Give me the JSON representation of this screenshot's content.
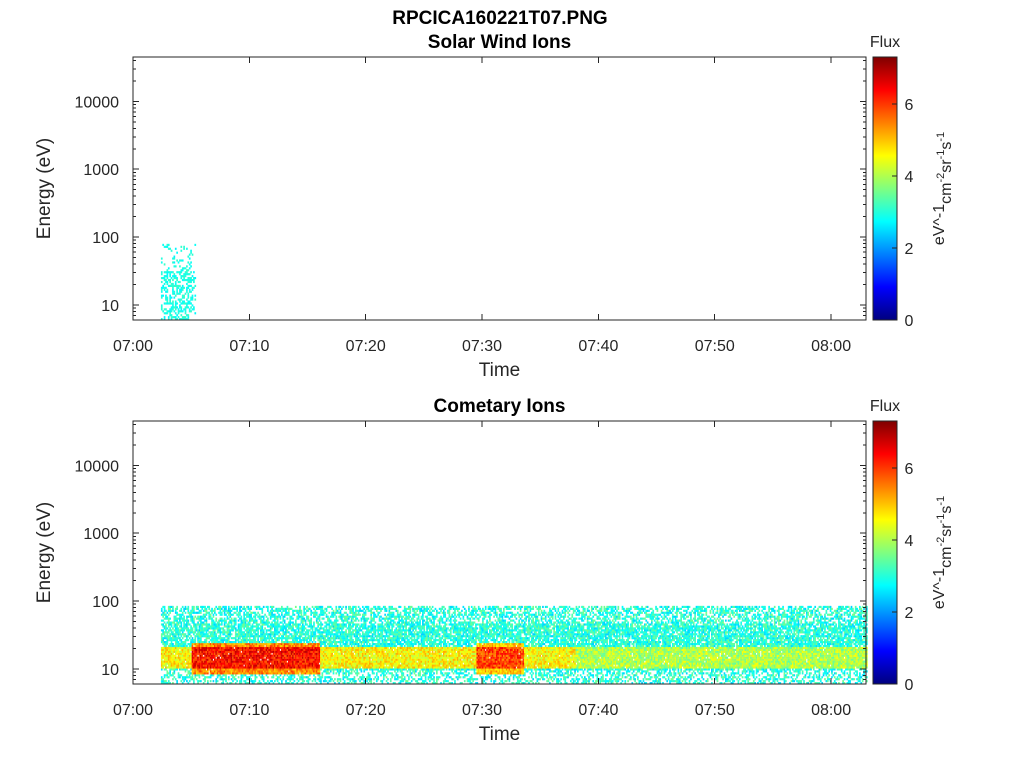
{
  "figure": {
    "filename_title": "RPCICA160221T07.PNG"
  },
  "chart_data": [
    {
      "type": "heatmap",
      "title": "Solar Wind Ions",
      "xlabel": "Time",
      "ylabel": "Energy (eV)",
      "x_ticks": [
        "07:00",
        "07:10",
        "07:20",
        "07:30",
        "07:40",
        "07:50",
        "08:00"
      ],
      "xlim_minutes": [
        0,
        63
      ],
      "y_ticks": [
        "10",
        "100",
        "1000",
        "10000"
      ],
      "ylim": [
        6,
        45000
      ],
      "y_scale": "log",
      "colorbar": {
        "title": "Flux",
        "label": "eV^-1 cm^-2 sr^-1 s^-1",
        "ticks": [
          "0",
          "2",
          "4",
          "6"
        ],
        "range": [
          0,
          7.3
        ],
        "colormap": "jet"
      },
      "data_region": {
        "t_start_min": 2.4,
        "t_end_min": 5.3,
        "energy_min": 6,
        "energy_max": 85,
        "flux_level": 2.9
      }
    },
    {
      "type": "heatmap",
      "title": "Cometary Ions",
      "xlabel": "Time",
      "ylabel": "Energy (eV)",
      "x_ticks": [
        "07:00",
        "07:10",
        "07:20",
        "07:30",
        "07:40",
        "07:50",
        "08:00"
      ],
      "xlim_minutes": [
        0,
        63
      ],
      "y_ticks": [
        "10",
        "100",
        "1000",
        "10000"
      ],
      "ylim": [
        6,
        45000
      ],
      "y_scale": "log",
      "colorbar": {
        "title": "Flux",
        "label": "eV^-1 cm^-2 sr^-1 s^-1",
        "ticks": [
          "0",
          "2",
          "4",
          "6"
        ],
        "range": [
          0,
          7.3
        ],
        "colormap": "jet"
      },
      "data_region": {
        "t_start_min": 2.4,
        "t_end_min": 63,
        "energy_min": 6,
        "energy_max": 85,
        "core_energy_range": [
          10,
          20
        ],
        "hot_spots": [
          {
            "t_start_min": 5,
            "t_end_min": 16,
            "flux": 6.3
          },
          {
            "t_start_min": 29.5,
            "t_end_min": 33.5,
            "flux": 5.9
          }
        ],
        "background_flux": 3.0
      }
    }
  ]
}
